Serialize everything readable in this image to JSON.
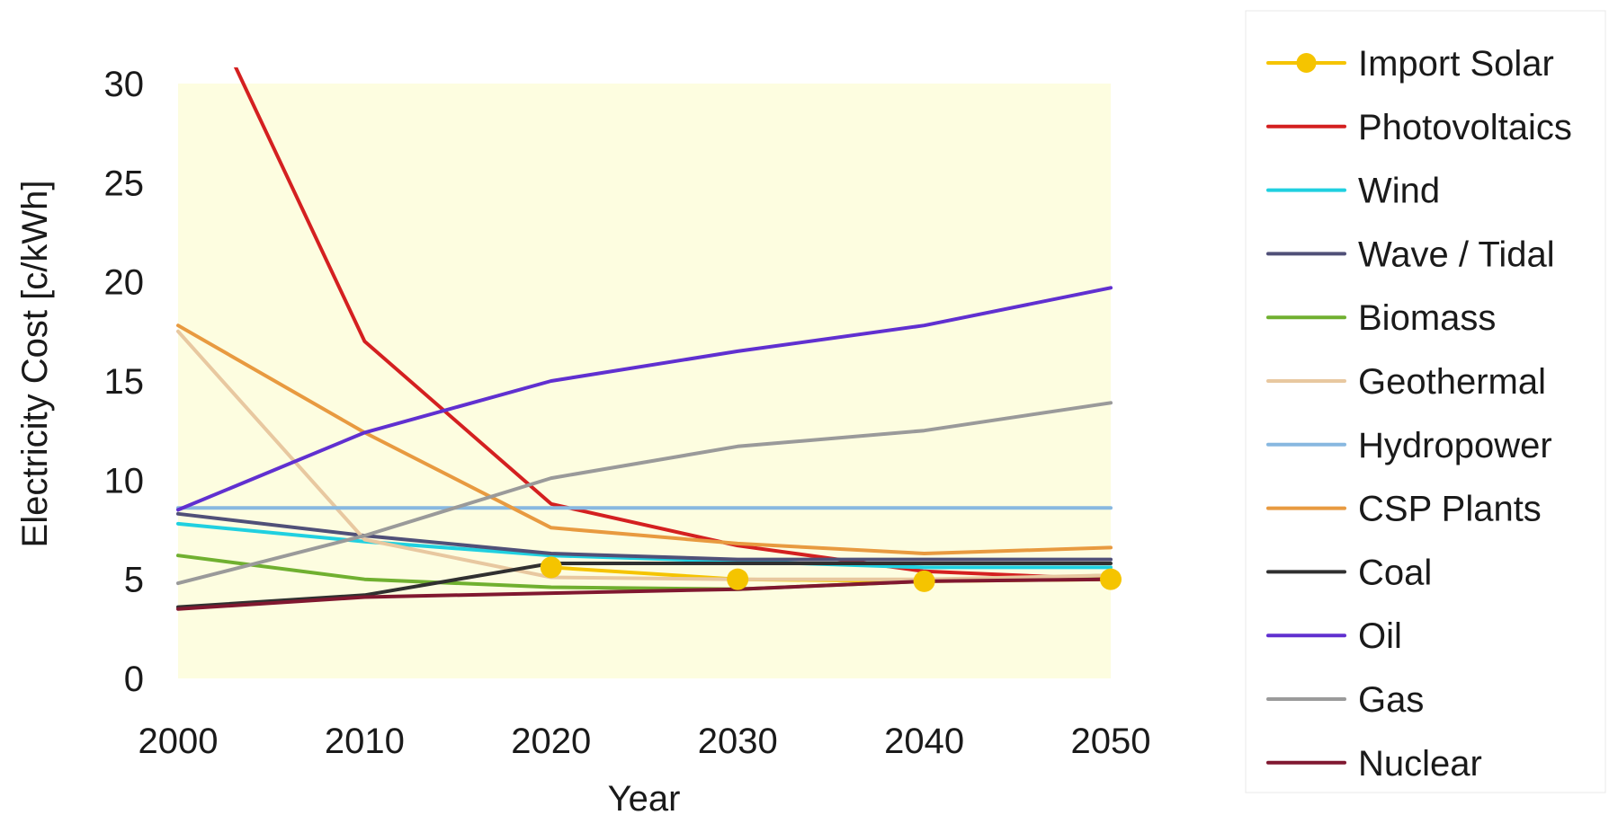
{
  "chart_data": {
    "type": "line",
    "title": "",
    "xlabel": "Year",
    "ylabel": "Electricity Cost [c/kWh]",
    "x": [
      2000,
      2010,
      2020,
      2030,
      2040,
      2050
    ],
    "xlim": [
      2000,
      2050
    ],
    "ylim": [
      0,
      30
    ],
    "x_ticks": [
      "2000",
      "2010",
      "2020",
      "2030",
      "2040",
      "2050"
    ],
    "y_ticks": [
      "0",
      "5",
      "10",
      "15",
      "20",
      "25",
      "30"
    ],
    "grid": false,
    "plot_background": "#fdfde0",
    "legend_position": "right",
    "series": [
      {
        "name": "Import Solar",
        "color": "#f5c400",
        "markers": true,
        "x": [
          2020,
          2030,
          2040,
          2050
        ],
        "values": [
          5.6,
          5.0,
          4.9,
          5.0
        ]
      },
      {
        "name": "Photovoltaics",
        "color": "#d42020",
        "markers": false,
        "x": [
          2003,
          2010,
          2020,
          2030,
          2040,
          2050
        ],
        "values": [
          31,
          17,
          8.8,
          6.7,
          5.4,
          5.0
        ]
      },
      {
        "name": "Wind",
        "color": "#20d0e0",
        "markers": false,
        "x": [
          2000,
          2010,
          2020,
          2030,
          2040,
          2050
        ],
        "values": [
          7.8,
          6.9,
          6.2,
          5.9,
          5.6,
          5.6
        ]
      },
      {
        "name": "Wave / Tidal",
        "color": "#505078",
        "markers": false,
        "x": [
          2000,
          2010,
          2020,
          2030,
          2040,
          2050
        ],
        "values": [
          8.3,
          7.2,
          6.3,
          6.0,
          6.0,
          6.0
        ]
      },
      {
        "name": "Biomass",
        "color": "#70b030",
        "markers": false,
        "x": [
          2000,
          2010,
          2020,
          2030,
          2040,
          2050
        ],
        "values": [
          6.2,
          5.0,
          4.6,
          4.5,
          4.9,
          5.2
        ]
      },
      {
        "name": "Geothermal",
        "color": "#e8c8a0",
        "markers": false,
        "x": [
          2000,
          2010,
          2020,
          2030,
          2040,
          2050
        ],
        "values": [
          17.5,
          7.0,
          5.1,
          5.0,
          5.0,
          5.2
        ]
      },
      {
        "name": "Hydropower",
        "color": "#88b8e0",
        "markers": false,
        "x": [
          2000,
          2010,
          2020,
          2030,
          2040,
          2050
        ],
        "values": [
          8.6,
          8.6,
          8.6,
          8.6,
          8.6,
          8.6
        ]
      },
      {
        "name": "CSP Plants",
        "color": "#e89a40",
        "markers": false,
        "x": [
          2000,
          2010,
          2020,
          2030,
          2040,
          2050
        ],
        "values": [
          17.8,
          12.4,
          7.6,
          6.8,
          6.3,
          6.6
        ]
      },
      {
        "name": "Coal",
        "color": "#303030",
        "markers": false,
        "x": [
          2000,
          2010,
          2020,
          2030,
          2040,
          2050
        ],
        "values": [
          3.6,
          4.2,
          5.8,
          5.8,
          5.8,
          5.8
        ]
      },
      {
        "name": "Oil",
        "color": "#6030d0",
        "markers": false,
        "x": [
          2000,
          2010,
          2020,
          2030,
          2040,
          2050
        ],
        "values": [
          8.5,
          12.4,
          15.0,
          16.5,
          17.8,
          19.7
        ]
      },
      {
        "name": "Gas",
        "color": "#9a9a9a",
        "markers": false,
        "x": [
          2000,
          2010,
          2020,
          2030,
          2040,
          2050
        ],
        "values": [
          4.8,
          7.2,
          10.1,
          11.7,
          12.5,
          13.9
        ]
      },
      {
        "name": "Nuclear",
        "color": "#801830",
        "markers": false,
        "x": [
          2000,
          2010,
          2020,
          2030,
          2040,
          2050
        ],
        "values": [
          3.5,
          4.1,
          4.3,
          4.5,
          4.9,
          5.0
        ]
      }
    ]
  }
}
